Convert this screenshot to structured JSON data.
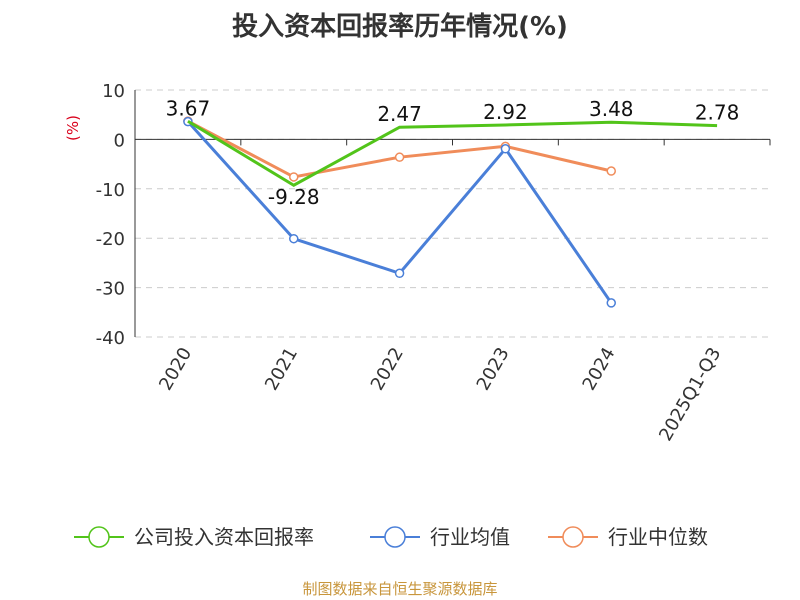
{
  "chart_data": {
    "type": "line",
    "title": "投入资本回报率历年情况(%)",
    "ylabel": "(%)",
    "categories": [
      "2020",
      "2021",
      "2022",
      "2023",
      "2024",
      "2025Q1-Q3"
    ],
    "ylim": [
      -40,
      10
    ],
    "yticks": [
      10,
      0,
      -10,
      -20,
      -30,
      -40
    ],
    "grid": true,
    "legend_position": "bottom",
    "series": [
      {
        "name": "公司投入资本回报率",
        "color": "#52c41a",
        "values": [
          3.67,
          -9.28,
          2.47,
          2.92,
          3.48,
          2.78
        ],
        "labels": [
          "3.67",
          "-9.28",
          "2.47",
          "2.92",
          "3.48",
          "2.78"
        ]
      },
      {
        "name": "行业均值",
        "color": "#4a7fd8",
        "values": [
          3.6,
          -20.1,
          -27.1,
          -1.9,
          -33.1,
          null
        ]
      },
      {
        "name": "行业中位数",
        "color": "#f08c5a",
        "values": [
          3.7,
          -7.6,
          -3.6,
          -1.4,
          -6.4,
          null
        ]
      }
    ]
  },
  "footer": "制图数据来自恒生聚源数据库"
}
